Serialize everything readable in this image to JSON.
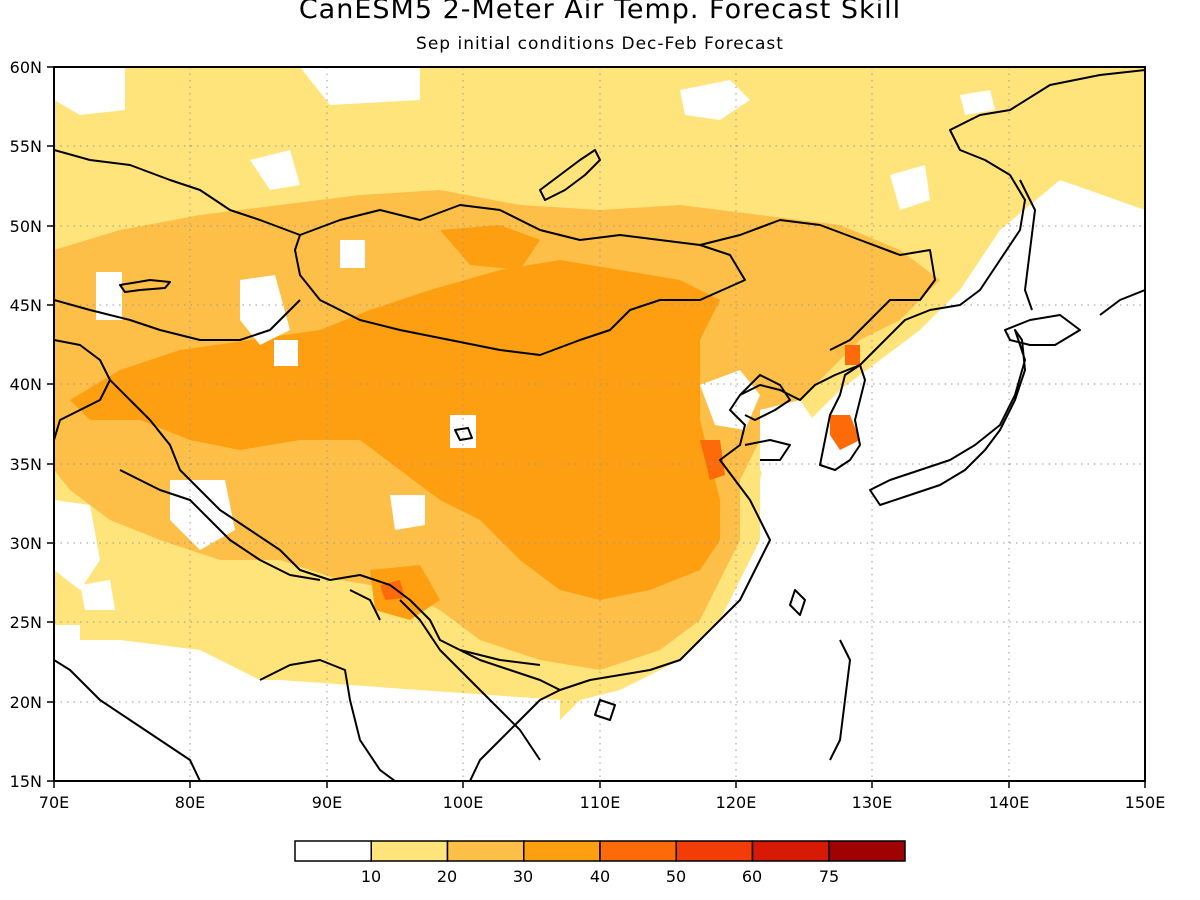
{
  "title": "CanESM5 2-Meter Air Temp. Forecast Skill",
  "subtitle": "Sep initial conditions  Dec-Feb Forecast",
  "map": {
    "region": "East and Central Asia",
    "lon_range": [
      70,
      150
    ],
    "lat_range": [
      15,
      60
    ],
    "lon_ticks": [
      "70E",
      "80E",
      "90E",
      "100E",
      "110E",
      "120E",
      "130E",
      "140E",
      "150E"
    ],
    "lat_ticks": [
      "60N",
      "55N",
      "50N",
      "45N",
      "40N",
      "35N",
      "30N",
      "25N",
      "20N",
      "15N"
    ],
    "grid": "dotted",
    "colors": {
      "land_outline": "#000000",
      "skill_bins": [
        "#ffffff",
        "#fee47a",
        "#fdbf47",
        "#fd9f11",
        "#fd6a0a",
        "#f33d07",
        "#d61a04",
        "#9e0202"
      ]
    }
  },
  "legend": {
    "labels": [
      "10",
      "20",
      "30",
      "40",
      "50",
      "60",
      "75"
    ],
    "bins": [
      "<10",
      "10-20",
      "20-30",
      "30-40",
      "40-50",
      "50-60",
      "60-75",
      ">75"
    ]
  }
}
